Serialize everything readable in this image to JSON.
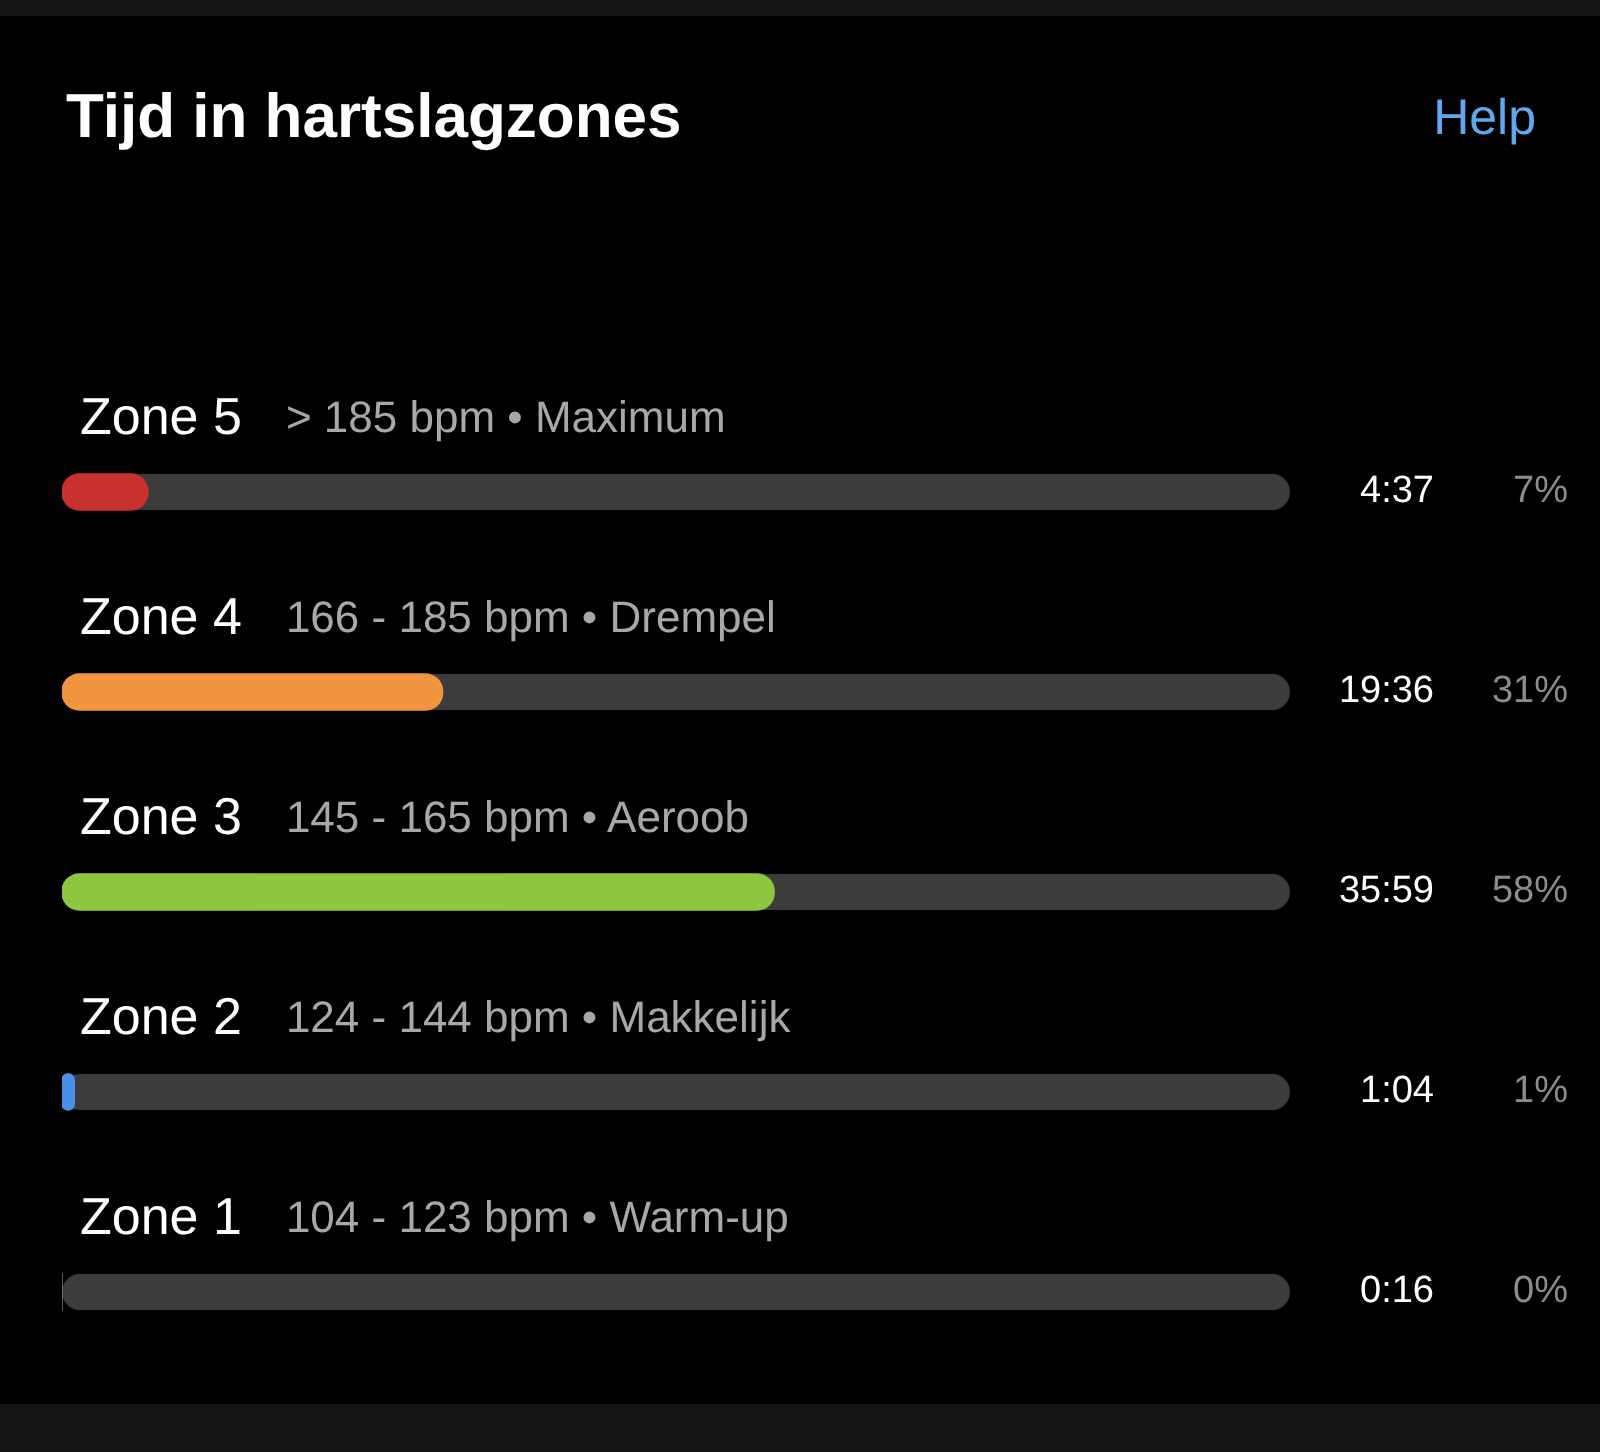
{
  "chart_data": {
    "type": "bar",
    "orientation": "horizontal",
    "title": "Tijd in hartslagzones",
    "categories": [
      "Zone 5",
      "Zone 4",
      "Zone 3",
      "Zone 2",
      "Zone 1"
    ],
    "values": [
      7,
      31,
      58,
      1,
      0
    ],
    "colors": [
      "#c8302d",
      "#f09440",
      "#8fc63f",
      "#4a8fe8",
      "#8c8c8c"
    ],
    "value_labels": [
      "7%",
      "31%",
      "58%",
      "1%",
      "0%"
    ],
    "xlim": [
      0,
      100
    ],
    "annotations": [
      "Help",
      "> 185 bpm • Maximum",
      "4:37",
      "166 - 185 bpm • Drempel",
      "19:36",
      "145 - 165 bpm • Aeroob",
      "35:59",
      "124 - 144 bpm • Makkelijk",
      "1:04",
      "104 - 123 bpm • Warm-up",
      "0:16"
    ]
  }
}
